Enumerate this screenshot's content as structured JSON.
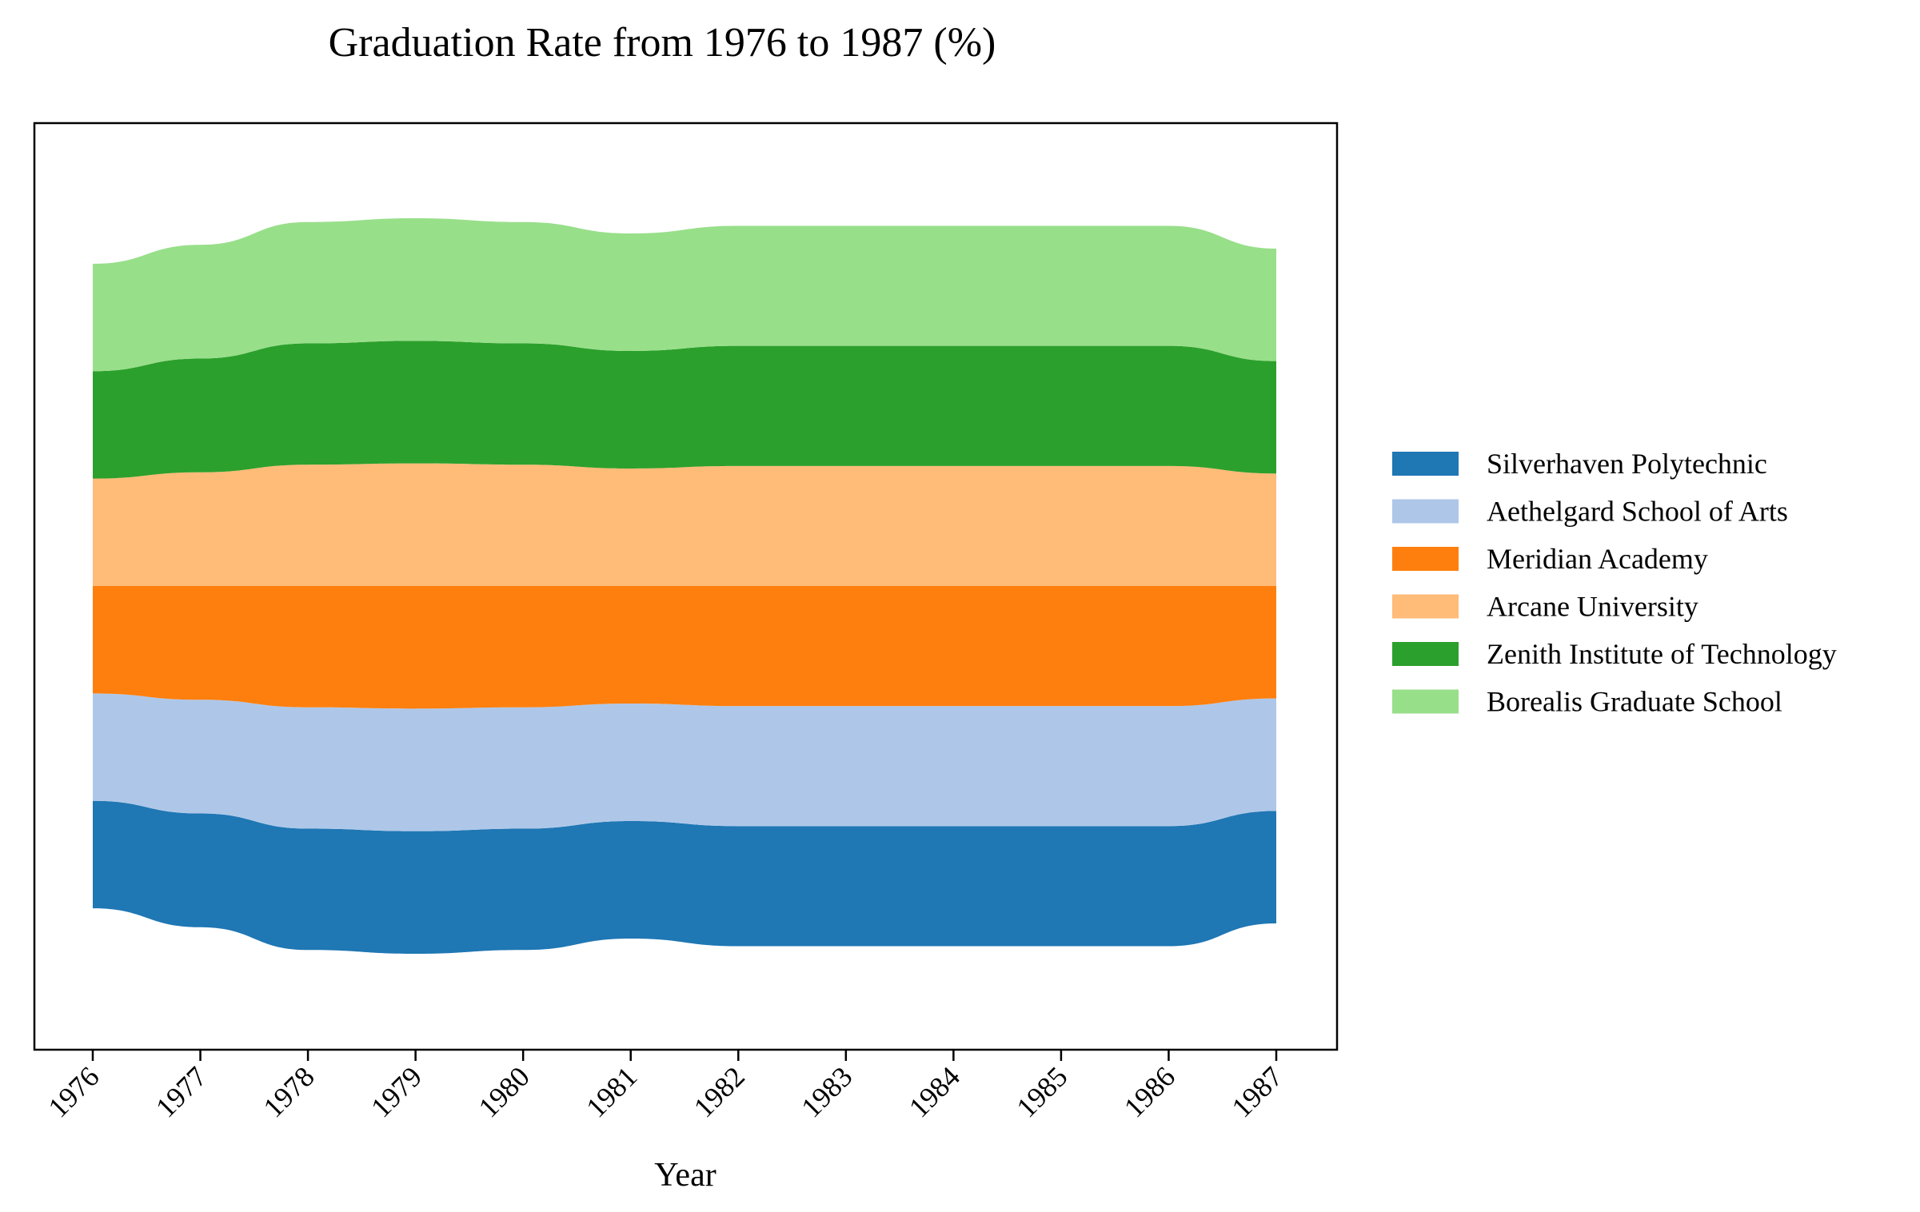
{
  "chart_data": {
    "type": "area",
    "subtype": "streamgraph",
    "title": "Graduation Rate from 1976 to 1987 (%)",
    "xlabel": "Year",
    "ylabel": "",
    "x": [
      "1976",
      "1977",
      "1978",
      "1979",
      "1980",
      "1981",
      "1982",
      "1983",
      "1984",
      "1985",
      "1986",
      "1987"
    ],
    "grid": false,
    "legend_position": "right",
    "series": [
      {
        "name": "Silverhaven Polytechnic",
        "color": "#1f77b4",
        "values": [
          85,
          90,
          96,
          97,
          96,
          93,
          95,
          95,
          95,
          95,
          95,
          89
        ]
      },
      {
        "name": "Aethelgard School of Arts",
        "color": "#aec7e8",
        "values": [
          85,
          90,
          96,
          97,
          96,
          93,
          95,
          95,
          95,
          95,
          95,
          89
        ]
      },
      {
        "name": "Meridian Academy",
        "color": "#ff7f0e",
        "values": [
          85,
          90,
          96,
          97,
          96,
          93,
          95,
          95,
          95,
          95,
          95,
          89
        ]
      },
      {
        "name": "Arcane University",
        "color": "#ffbb78",
        "values": [
          85,
          90,
          96,
          97,
          96,
          93,
          95,
          95,
          95,
          95,
          95,
          89
        ]
      },
      {
        "name": "Zenith Institute of Technology",
        "color": "#2ca02c",
        "values": [
          85,
          90,
          96,
          97,
          96,
          93,
          95,
          95,
          95,
          95,
          95,
          89
        ]
      },
      {
        "name": "Borealis Graduate School",
        "color": "#98df8a",
        "values": [
          85,
          90,
          96,
          97,
          96,
          93,
          95,
          95,
          95,
          95,
          95,
          89
        ]
      }
    ]
  }
}
